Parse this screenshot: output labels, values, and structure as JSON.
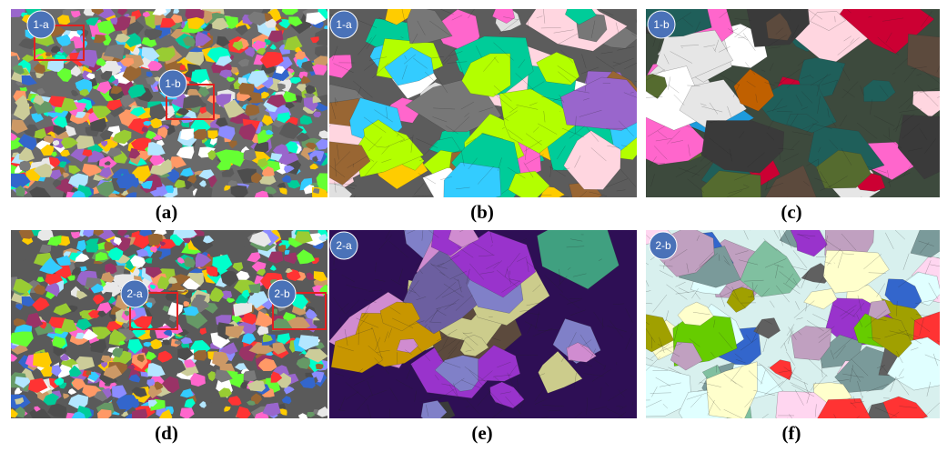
{
  "panels": [
    {
      "caption": "(a)",
      "badges": [
        "1-a",
        "1-b"
      ]
    },
    {
      "caption": "(b)",
      "badges": [
        "1-a"
      ]
    },
    {
      "caption": "(c)",
      "badges": [
        "1-b"
      ]
    },
    {
      "caption": "(d)",
      "badges": [
        "2-a",
        "2-b"
      ]
    },
    {
      "caption": "(e)",
      "badges": [
        "2-a"
      ]
    },
    {
      "caption": "(f)",
      "badges": [
        "2-b"
      ]
    }
  ]
}
